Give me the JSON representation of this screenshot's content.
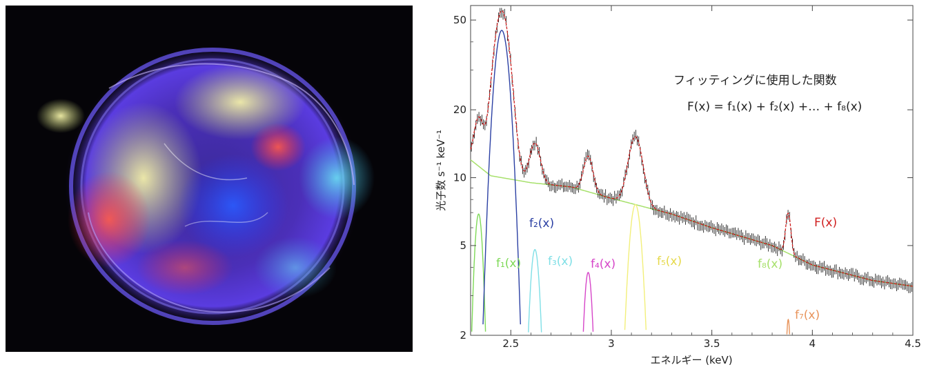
{
  "image": {
    "description_icon": "supernova-remnant-xray-image"
  },
  "chart_data": {
    "type": "line",
    "xlabel": "エネルギー (keV)",
    "ylabel": "光子数 s⁻¹ keV⁻¹",
    "xlim": [
      2.3,
      4.5
    ],
    "ylim": [
      2,
      58
    ],
    "yscale": "log",
    "x_ticks": [
      2.5,
      3,
      3.5,
      4,
      4.5
    ],
    "x_tick_labels": [
      "2.5",
      "3",
      "3.5",
      "4",
      "4.5"
    ],
    "y_ticks": [
      2,
      5,
      10,
      20,
      50
    ],
    "y_tick_labels": [
      "2",
      "5",
      "10",
      "20",
      "50"
    ],
    "annotation_title": "フィッティングに使用した関数",
    "annotation_formula": "F(x) = f₁(x) + f₂(x) +… + f₈(x)",
    "model": {
      "continuum": {
        "label": "f₈(x)",
        "color": "#a6e06a",
        "points": [
          [
            2.3,
            12
          ],
          [
            2.4,
            10.2
          ],
          [
            2.6,
            9.5
          ],
          [
            2.8,
            9.1
          ],
          [
            3.0,
            8.1
          ],
          [
            3.3,
            6.9
          ],
          [
            3.5,
            6.0
          ],
          [
            3.8,
            5.0
          ],
          [
            4.0,
            4.1
          ],
          [
            4.3,
            3.5
          ],
          [
            4.5,
            3.3
          ]
        ]
      },
      "lines": [
        {
          "label": "f₁(x)",
          "color": "#7ed957",
          "center": 2.34,
          "peak": 6.9,
          "sigma": 0.022
        },
        {
          "label": "f₂(x)",
          "color": "#2a3fa3",
          "center": 2.455,
          "peak": 45,
          "sigma": 0.038
        },
        {
          "label": "f₃(x)",
          "color": "#7fdfe6",
          "center": 2.62,
          "peak": 4.8,
          "sigma": 0.025
        },
        {
          "label": "f₄(x)",
          "color": "#d645c8",
          "center": 2.885,
          "peak": 3.8,
          "sigma": 0.022
        },
        {
          "label": "f₅(x)",
          "color": "#f2ef7a",
          "center": 3.12,
          "peak": 7.6,
          "sigma": 0.033
        },
        {
          "label": "f₇(x)",
          "color": "#e8935a",
          "center": 3.88,
          "peak": 2.35,
          "sigma": 0.012
        }
      ],
      "total": {
        "label": "F(x)",
        "color": "#d02020"
      },
      "data_color": "#000000"
    }
  }
}
